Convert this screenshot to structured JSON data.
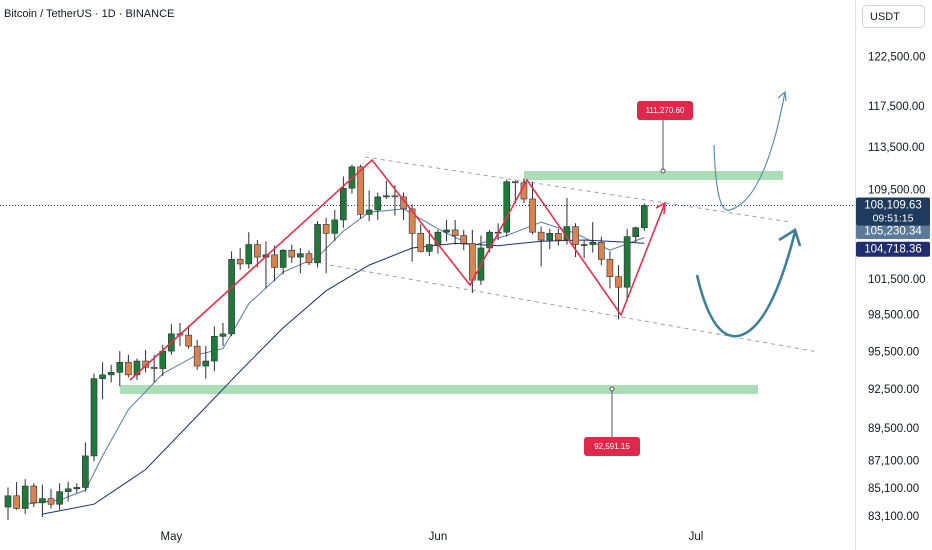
{
  "chart_data": {
    "type": "candlestick",
    "title": "Bitcoin / TetherUS · 1D · BINANCE",
    "currency": "USDT",
    "log_scale": true,
    "grid": false,
    "up_color": "#1f7a37",
    "down_color": "#d9844f",
    "ylim": [
      82540,
      128600
    ],
    "yticks": [
      {
        "value": 83100,
        "label": "83,100.00"
      },
      {
        "value": 85100,
        "label": "85,100.00"
      },
      {
        "value": 87100,
        "label": "87,100.00"
      },
      {
        "value": 89500,
        "label": "89,500.00"
      },
      {
        "value": 92500,
        "label": "92,500.00"
      },
      {
        "value": 95500,
        "label": "95,500.00"
      },
      {
        "value": 98500,
        "label": "98,500.00"
      },
      {
        "value": 101500,
        "label": "101,500.00"
      },
      {
        "value": 109500,
        "label": "109,500.00"
      },
      {
        "value": 113500,
        "label": "113,500.00"
      },
      {
        "value": 117500,
        "label": "117,500.00"
      },
      {
        "value": 122500,
        "label": "122,500.00"
      }
    ],
    "xlim": [
      -0.93,
      98.5
    ],
    "xticks": [
      {
        "value": 19,
        "label": "May"
      },
      {
        "value": 50,
        "label": "Jun"
      },
      {
        "value": 80,
        "label": "Jul"
      }
    ],
    "open": [
      83800,
      84600,
      83700,
      85300,
      84100,
      84400,
      84000,
      84900,
      85100,
      85200,
      87500,
      93400,
      93700,
      93900,
      94700,
      93700,
      94800,
      94300,
      94200,
      95600,
      97000,
      96900,
      96000,
      94400,
      94800,
      96800,
      97000,
      103300,
      102900,
      104600,
      103500,
      103700,
      102600,
      104100,
      103500,
      103800,
      103000,
      106400,
      105600,
      106800,
      109700,
      111700,
      107300,
      107700,
      108900,
      109000,
      108900,
      107800,
      105600,
      104000,
      104600,
      105700,
      105900,
      105400,
      104700,
      101500,
      104300,
      105700,
      105700,
      110300,
      110200,
      108700,
      105700,
      105000,
      105600,
      105000,
      106200,
      104600,
      104600,
      104800,
      103300,
      101800,
      100900,
      105300,
      106100
    ],
    "high": [
      85200,
      85600,
      85800,
      85500,
      85400,
      85100,
      85500,
      85600,
      85500,
      88500,
      93800,
      94700,
      94500,
      95600,
      95300,
      95000,
      95700,
      95300,
      96100,
      97800,
      97900,
      97700,
      96500,
      96000,
      97600,
      97900,
      104000,
      104300,
      105700,
      105000,
      104900,
      104500,
      104200,
      104600,
      104300,
      104100,
      106700,
      107000,
      107700,
      110800,
      111900,
      111900,
      109500,
      109300,
      110400,
      110000,
      109300,
      108200,
      106400,
      105900,
      105900,
      106800,
      106800,
      105900,
      105900,
      105400,
      105900,
      106500,
      110500,
      110400,
      110600,
      110300,
      106200,
      106000,
      106000,
      108800,
      106500,
      105000,
      106600,
      105300,
      104000,
      102800,
      106000,
      106200,
      108300
    ],
    "low": [
      82900,
      83600,
      83300,
      83800,
      83100,
      83700,
      83600,
      84200,
      84800,
      84900,
      87100,
      91800,
      93100,
      92800,
      93500,
      93300,
      93900,
      93100,
      93600,
      95300,
      96000,
      95800,
      94100,
      93400,
      94000,
      96000,
      96800,
      102400,
      102500,
      102600,
      100800,
      101400,
      102000,
      103000,
      102100,
      102800,
      102600,
      102100,
      104900,
      106100,
      109200,
      106900,
      106700,
      106800,
      108700,
      107200,
      106800,
      103100,
      103900,
      103600,
      103800,
      104900,
      104600,
      104100,
      100400,
      101100,
      103900,
      105000,
      105300,
      108300,
      108300,
      105500,
      102700,
      104200,
      104500,
      104600,
      103500,
      103400,
      103900,
      102800,
      100800,
      98200,
      99700,
      104800,
      105800
    ],
    "close": [
      84600,
      83700,
      85300,
      84100,
      84400,
      84000,
      84900,
      85100,
      85200,
      87500,
      93400,
      93700,
      93900,
      94700,
      93700,
      94800,
      94300,
      94200,
      95600,
      97000,
      96900,
      96000,
      94400,
      94800,
      96800,
      97000,
      103300,
      102900,
      104600,
      103500,
      103700,
      102600,
      104100,
      103500,
      103800,
      103000,
      106400,
      105600,
      106800,
      109700,
      111700,
      107300,
      107700,
      108900,
      109000,
      108900,
      107800,
      105600,
      104000,
      104600,
      105700,
      105900,
      105400,
      104700,
      101500,
      104300,
      105700,
      105700,
      110300,
      110200,
      108700,
      105700,
      105000,
      105600,
      105000,
      106200,
      104600,
      104600,
      104800,
      103300,
      101800,
      100900,
      105300,
      106100,
      108109.63
    ],
    "last_close_label": "108,109.63",
    "countdown": "09:51:15",
    "price_badge_color": "#1e3a5c",
    "lines": [
      {
        "color": "#5b7a99",
        "x": [
          2,
          6,
          9,
          11,
          14,
          18,
          22,
          25,
          28,
          32,
          36,
          39,
          42,
          46,
          50,
          54,
          58,
          62,
          66,
          70,
          74
        ],
        "values": [
          84000,
          84300,
          85000,
          87500,
          91000,
          93800,
          95300,
          95800,
          99500,
          102200,
          103500,
          105800,
          107500,
          107800,
          106000,
          104500,
          105400,
          106600,
          105600,
          104100,
          105230.34
        ],
        "last_label": "105,230.34"
      },
      {
        "color": "#1f2d6e",
        "x": [
          4,
          10,
          16,
          22,
          27,
          32,
          37,
          42,
          47,
          52,
          57,
          62,
          67,
          74
        ],
        "values": [
          83300,
          84000,
          86500,
          90500,
          94000,
          97500,
          100600,
          102800,
          104300,
          104700,
          104500,
          104900,
          105000,
          104718.36
        ],
        "last_label": "104,718.36"
      }
    ],
    "annotations": [
      "111,270.60",
      "92,591.15"
    ]
  }
}
